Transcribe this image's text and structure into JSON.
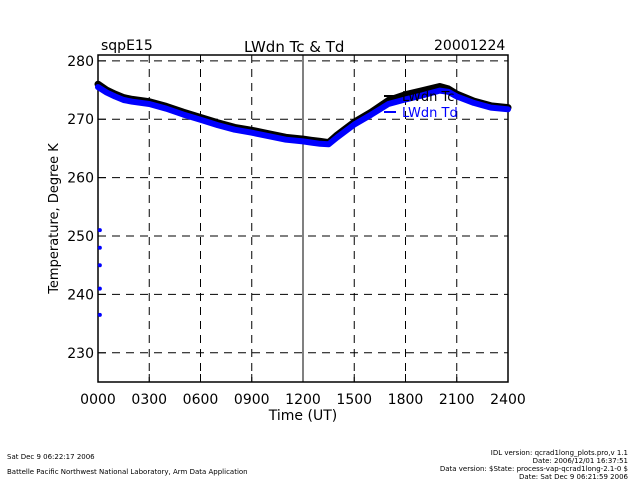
{
  "header": {
    "site": "sqpE15",
    "date": "20001224"
  },
  "footer": {
    "left_line1": "Sat Dec  9 06:22:17 2006",
    "left_line2": "Battelle Pacific Northwest National Laboratory, Arm Data Application",
    "right_line1": "IDL version: qcrad1long_plots.pro,v 1.1",
    "right_line2": "Date: 2006/12/01 16:37:51",
    "right_line3": "Data version: $State: process-vap-qcrad1long-2.1-0 $",
    "right_line4": "Date: Sat Dec  9 06:21:59 2006"
  },
  "chart_data": {
    "type": "line",
    "title": "LWdn Tc & Td",
    "xlabel": "Time (UT)",
    "ylabel": "Temperature, Degree K",
    "xlim": [
      0,
      24
    ],
    "ylim": [
      225,
      281
    ],
    "x_ticks": [
      "0000",
      "0300",
      "0600",
      "0900",
      "1200",
      "1500",
      "1800",
      "2100",
      "2400"
    ],
    "y_ticks": [
      230,
      240,
      250,
      260,
      270,
      280
    ],
    "grid": "dashed",
    "legend_position": "top-right",
    "colors": {
      "tc": "#000000",
      "td": "#0000ff"
    },
    "series": [
      {
        "name": "LWdn Tc",
        "x": [
          0,
          0.5,
          1,
          1.5,
          2,
          3,
          4,
          5,
          6,
          7,
          8,
          9,
          10,
          11,
          12,
          12.5,
          13,
          13.5,
          14,
          15,
          16,
          17,
          18,
          19,
          20,
          20.5,
          21,
          22,
          23,
          24
        ],
        "y": [
          276.0,
          275.0,
          274.3,
          273.7,
          273.4,
          273.0,
          272.2,
          271.2,
          270.3,
          269.4,
          268.6,
          268.1,
          267.5,
          266.9,
          266.6,
          266.4,
          266.2,
          266.0,
          267.3,
          269.5,
          271.2,
          273.2,
          274.2,
          274.9,
          275.6,
          275.2,
          274.3,
          273.1,
          272.3,
          272.0
        ]
      },
      {
        "name": "LWdn Td",
        "x": [
          0,
          0.5,
          1,
          1.5,
          2,
          3,
          4,
          5,
          6,
          7,
          8,
          9,
          10,
          11,
          12,
          12.5,
          13,
          13.5,
          14,
          15,
          16,
          17,
          18,
          19,
          20,
          20.5,
          21,
          22,
          23,
          24
        ],
        "y": [
          275.5,
          274.6,
          273.9,
          273.3,
          273.0,
          272.6,
          271.8,
          270.8,
          269.9,
          269.0,
          268.2,
          267.7,
          267.1,
          266.5,
          266.2,
          266.0,
          265.8,
          265.7,
          266.9,
          269.1,
          270.8,
          272.6,
          273.4,
          274.1,
          274.9,
          274.7,
          273.9,
          272.8,
          272.0,
          271.7
        ]
      }
    ],
    "outliers_td": [
      {
        "x": 0.05,
        "y": 251.0
      },
      {
        "x": 0.05,
        "y": 248.0
      },
      {
        "x": 0.05,
        "y": 245.0
      },
      {
        "x": 0.05,
        "y": 241.0
      },
      {
        "x": 0.05,
        "y": 236.5
      }
    ]
  }
}
